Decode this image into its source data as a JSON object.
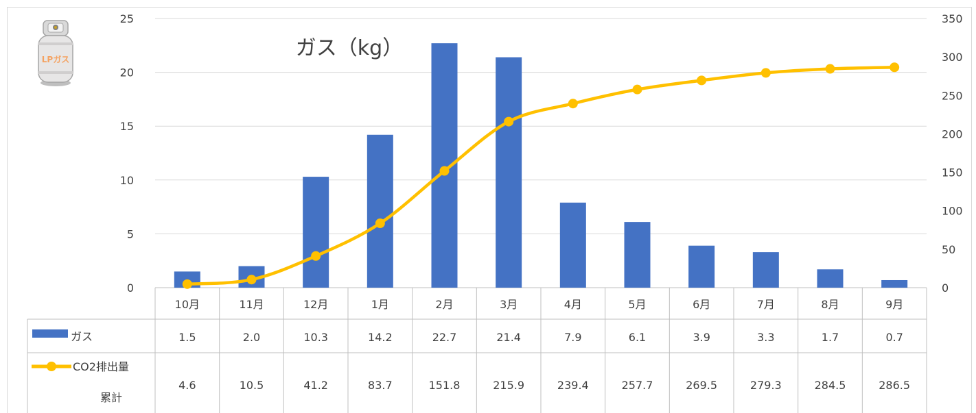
{
  "chart_data": {
    "type": "bar",
    "title": "ガス（kg）",
    "categories": [
      "10月",
      "11月",
      "12月",
      "1月",
      "2月",
      "3月",
      "4月",
      "5月",
      "6月",
      "7月",
      "8月",
      "9月"
    ],
    "series": [
      {
        "name": "ガス",
        "type": "bar",
        "axis": "left",
        "color": "#4472C4",
        "values": [
          1.5,
          2.0,
          10.3,
          14.2,
          22.7,
          21.4,
          7.9,
          6.1,
          3.9,
          3.3,
          1.7,
          0.7
        ],
        "labels": [
          "1.5",
          "2.0",
          "10.3",
          "14.2",
          "22.7",
          "21.4",
          "7.9",
          "6.1",
          "3.9",
          "3.3",
          "1.7",
          "0.7"
        ]
      },
      {
        "name": "CO2排出量累計",
        "name_lines": [
          "CO2排出量",
          "累計"
        ],
        "type": "line",
        "axis": "right",
        "color": "#FFC000",
        "markers": true,
        "values": [
          4.6,
          10.5,
          41.2,
          83.7,
          151.8,
          215.9,
          239.4,
          257.7,
          269.5,
          279.3,
          284.5,
          286.5
        ],
        "labels": [
          "4.6",
          "10.5",
          "41.2",
          "83.7",
          "151.8",
          "215.9",
          "239.4",
          "257.7",
          "269.5",
          "279.3",
          "284.5",
          "286.5"
        ]
      }
    ],
    "y_left": {
      "ylim": [
        0,
        25
      ],
      "ticks": [
        "0",
        "5",
        "10",
        "15",
        "20",
        "25"
      ]
    },
    "y_right": {
      "ylim": [
        0,
        350
      ],
      "ticks": [
        "0",
        "50",
        "100",
        "150",
        "200",
        "250",
        "300",
        "350"
      ]
    },
    "grid": true,
    "data_table": true,
    "gridline_color": "#D9D9D9"
  },
  "icon": {
    "name": "lp-gas-cylinder-icon",
    "label": "LPガス"
  }
}
